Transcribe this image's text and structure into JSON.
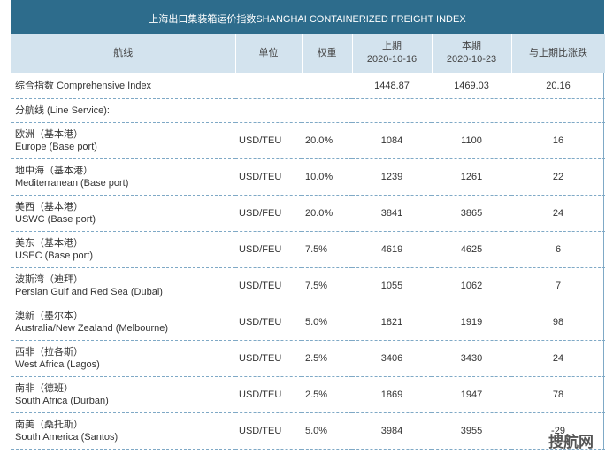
{
  "header": {
    "title": "上海出口集装箱运价指数SHANGHAI CONTAINERIZED FREIGHT INDEX"
  },
  "table": {
    "columns": [
      {
        "label": "航线"
      },
      {
        "label": "单位"
      },
      {
        "label": "权重"
      },
      {
        "label": "上期",
        "date": "2020-10-16"
      },
      {
        "label": "本期",
        "date": "2020-10-23"
      },
      {
        "label": "与上期比涨跌"
      }
    ],
    "composite": {
      "name": "综合指数 Comprehensive Index",
      "previous": "1448.87",
      "current": "1469.03",
      "change": "20.16"
    },
    "section": "分航线 (Line Service):",
    "rows": [
      {
        "cn": "欧洲（基本港）",
        "en": "Europe (Base port)",
        "unit": "USD/TEU",
        "weight": "20.0%",
        "previous": "1084",
        "current": "1100",
        "change": "16"
      },
      {
        "cn": "地中海（基本港）",
        "en": "Mediterranean (Base port)",
        "unit": "USD/TEU",
        "weight": "10.0%",
        "previous": "1239",
        "current": "1261",
        "change": "22"
      },
      {
        "cn": "美西（基本港）",
        "en": "USWC (Base port)",
        "unit": "USD/FEU",
        "weight": "20.0%",
        "previous": "3841",
        "current": "3865",
        "change": "24"
      },
      {
        "cn": "美东（基本港）",
        "en": "USEC (Base port)",
        "unit": "USD/FEU",
        "weight": "7.5%",
        "previous": "4619",
        "current": "4625",
        "change": "6"
      },
      {
        "cn": "波斯湾（迪拜）",
        "en": "Persian Gulf and Red Sea (Dubai)",
        "unit": "USD/TEU",
        "weight": "7.5%",
        "previous": "1055",
        "current": "1062",
        "change": "7"
      },
      {
        "cn": "澳新（墨尔本）",
        "en": "Australia/New Zealand (Melbourne)",
        "unit": "USD/TEU",
        "weight": "5.0%",
        "previous": "1821",
        "current": "1919",
        "change": "98"
      },
      {
        "cn": "西非（拉各斯）",
        "en": "West Africa (Lagos)",
        "unit": "USD/TEU",
        "weight": "2.5%",
        "previous": "3406",
        "current": "3430",
        "change": "24"
      },
      {
        "cn": "南非（德班）",
        "en": "South Africa (Durban)",
        "unit": "USD/TEU",
        "weight": "2.5%",
        "previous": "1869",
        "current": "1947",
        "change": "78"
      },
      {
        "cn": "南美（桑托斯）",
        "en": "South America (Santos)",
        "unit": "USD/TEU",
        "weight": "5.0%",
        "previous": "3984",
        "current": "3955",
        "change": "-29"
      }
    ]
  },
  "watermark": "搜航网"
}
